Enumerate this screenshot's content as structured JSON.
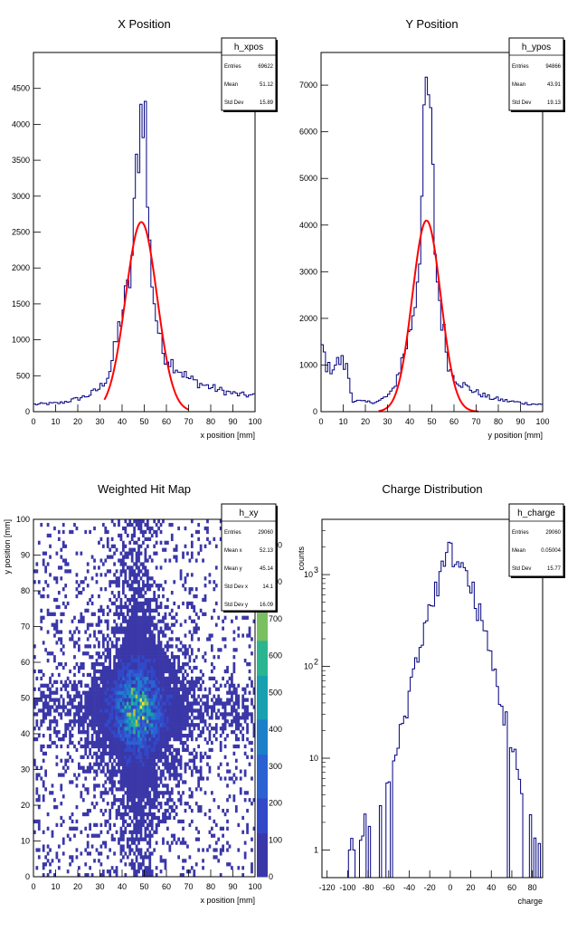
{
  "chart_data": [
    {
      "type": "histogram",
      "title": "X Position",
      "xlabel": "x position [mm]",
      "ylabel": "",
      "xlim": [
        0,
        100
      ],
      "ylim": [
        0,
        5000
      ],
      "xticks": [
        0,
        10,
        20,
        30,
        40,
        50,
        60,
        70,
        80,
        90,
        100
      ],
      "yticks": [
        0,
        500,
        1000,
        1500,
        2000,
        2500,
        3000,
        3500,
        4000,
        4500
      ],
      "stats": {
        "name": "h_xpos",
        "rows": [
          {
            "label": "Entries",
            "value": "69622"
          },
          {
            "label": "Mean",
            "value": "51.12"
          },
          {
            "label": "Std Dev",
            "value": "15.89"
          }
        ]
      },
      "hist_profile": [
        [
          0,
          100
        ],
        [
          12,
          120
        ],
        [
          20,
          180
        ],
        [
          25,
          230
        ],
        [
          30,
          330
        ],
        [
          34,
          520
        ],
        [
          37,
          900
        ],
        [
          40,
          1400
        ],
        [
          43,
          1700
        ],
        [
          45,
          2300
        ],
        [
          47,
          3700
        ],
        [
          49,
          4300
        ],
        [
          50,
          4600
        ],
        [
          52,
          2400
        ],
        [
          55,
          1400
        ],
        [
          58,
          850
        ],
        [
          62,
          700
        ],
        [
          66,
          580
        ],
        [
          70,
          460
        ],
        [
          76,
          380
        ],
        [
          84,
          300
        ],
        [
          92,
          240
        ],
        [
          100,
          220
        ]
      ],
      "fit": {
        "color": "#ff0000",
        "amplitude": 2640,
        "mean": 48.7,
        "sigma": 7.1,
        "range": [
          32,
          70
        ]
      }
    },
    {
      "type": "histogram",
      "title": "Y Position",
      "xlabel": "y position [mm]",
      "ylabel": "",
      "xlim": [
        0,
        100
      ],
      "ylim": [
        0,
        7700
      ],
      "xticks": [
        0,
        10,
        20,
        30,
        40,
        50,
        60,
        70,
        80,
        90,
        100
      ],
      "yticks": [
        0,
        1000,
        2000,
        3000,
        4000,
        5000,
        6000,
        7000
      ],
      "stats": {
        "name": "h_ypos",
        "rows": [
          {
            "label": "Entries",
            "value": "94866"
          },
          {
            "label": "Mean",
            "value": "43.91"
          },
          {
            "label": "Std Dev",
            "value": "19.13"
          }
        ]
      },
      "hist_profile": [
        [
          0,
          1500
        ],
        [
          3,
          900
        ],
        [
          6,
          1000
        ],
        [
          9,
          1100
        ],
        [
          12,
          900
        ],
        [
          14,
          250
        ],
        [
          20,
          200
        ],
        [
          26,
          220
        ],
        [
          32,
          400
        ],
        [
          36,
          1000
        ],
        [
          40,
          1700
        ],
        [
          43,
          2600
        ],
        [
          45,
          4000
        ],
        [
          47,
          6200
        ],
        [
          48,
          7200
        ],
        [
          50,
          5400
        ],
        [
          52,
          3000
        ],
        [
          55,
          1800
        ],
        [
          58,
          900
        ],
        [
          62,
          650
        ],
        [
          66,
          520
        ],
        [
          70,
          420
        ],
        [
          76,
          300
        ],
        [
          84,
          230
        ],
        [
          92,
          180
        ],
        [
          100,
          150
        ]
      ],
      "fit": {
        "color": "#ff0000",
        "amplitude": 4100,
        "mean": 47.6,
        "sigma": 6.4,
        "range": [
          26,
          71
        ]
      }
    },
    {
      "type": "heatmap",
      "title": "Weighted Hit Map",
      "xlabel": "x position [mm]",
      "ylabel": "y position [mm]",
      "xlim": [
        0,
        100
      ],
      "ylim": [
        0,
        100
      ],
      "xticks": [
        0,
        10,
        20,
        30,
        40,
        50,
        60,
        70,
        80,
        90,
        100
      ],
      "yticks": [
        0,
        10,
        20,
        30,
        40,
        50,
        60,
        70,
        80,
        90,
        100
      ],
      "zticks": [
        "0",
        "100",
        "200",
        "300",
        "400",
        "500",
        "600",
        "700",
        "800",
        "900"
      ],
      "peak": {
        "x": 47,
        "y": 47
      },
      "stats": {
        "name": "h_xy",
        "rows": [
          {
            "label": "Entries",
            "value": "29060"
          },
          {
            "label": "Mean x",
            "value": "52.13"
          },
          {
            "label": "Mean y",
            "value": "45.14"
          },
          {
            "label": "Std Dev x",
            "value": "14.1"
          },
          {
            "label": "Std Dev y",
            "value": "16.09"
          }
        ]
      }
    },
    {
      "type": "histogram",
      "title": "Charge Distribution",
      "xlabel": "charge",
      "ylabel": "counts",
      "xlim": [
        -125,
        90
      ],
      "ylim": [
        0.5,
        4000
      ],
      "yscale": "log",
      "xticks": [
        -120,
        -100,
        -80,
        -60,
        -40,
        -20,
        0,
        20,
        40,
        60,
        80
      ],
      "yticks": [
        1,
        10,
        100,
        1000
      ],
      "ytick_labels": [
        "1",
        "10",
        "10^2",
        "10^3"
      ],
      "stats": {
        "name": "h_charge",
        "rows": [
          {
            "label": "Entries",
            "value": "29060"
          },
          {
            "label": "Mean",
            "value": "0.05004"
          },
          {
            "label": "Std Dev",
            "value": "15.77"
          }
        ]
      },
      "log_profile": [
        [
          -100,
          1
        ],
        [
          -80,
          2
        ],
        [
          -60,
          5
        ],
        [
          -50,
          15
        ],
        [
          -40,
          45
        ],
        [
          -30,
          150
        ],
        [
          -20,
          400
        ],
        [
          -10,
          900
        ],
        [
          0,
          1800
        ],
        [
          10,
          1300
        ],
        [
          20,
          700
        ],
        [
          30,
          300
        ],
        [
          40,
          110
        ],
        [
          50,
          35
        ],
        [
          60,
          12
        ],
        [
          70,
          4
        ],
        [
          78,
          2
        ],
        [
          85,
          1
        ]
      ]
    }
  ]
}
